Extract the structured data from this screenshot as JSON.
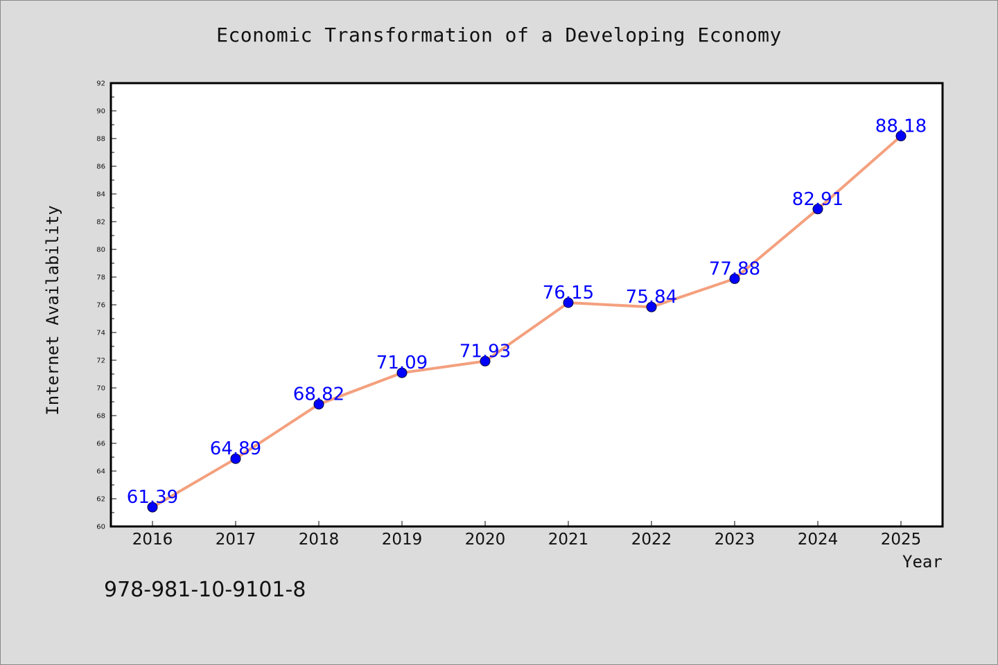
{
  "chart_data": {
    "type": "line",
    "title": "Economic Transformation of a Developing Economy",
    "xlabel": "Year",
    "ylabel": "Internet Availability",
    "categories": [
      "2016",
      "2017",
      "2018",
      "2019",
      "2020",
      "2021",
      "2022",
      "2023",
      "2024",
      "2025"
    ],
    "series": [
      {
        "values": [
          61.39,
          64.89,
          68.82,
          71.09,
          71.93,
          76.15,
          75.84,
          77.88,
          82.91,
          88.18
        ],
        "line_color": "#f4a07e",
        "marker_color": "#0000ff"
      }
    ],
    "ylim": [
      60,
      92
    ],
    "yticks": [
      60,
      62,
      64,
      66,
      68,
      70,
      72,
      74,
      76,
      78,
      80,
      82,
      84,
      86,
      88,
      90,
      92
    ],
    "data_labels": [
      "61.39",
      "64.89",
      "68.82",
      "71.09",
      "71.93",
      "76.15",
      "75.84",
      "77.88",
      "82.91",
      "88.18"
    ],
    "grid": false,
    "legend": "none"
  },
  "footer": {
    "isbn": "978-981-10-9101-8"
  }
}
